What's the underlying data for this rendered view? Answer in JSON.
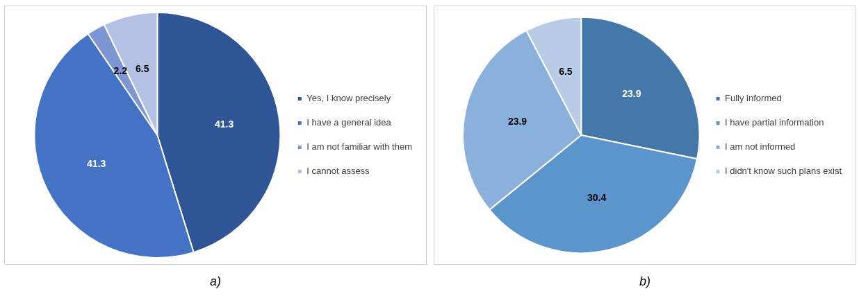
{
  "chart_data": [
    {
      "type": "pie",
      "categories": [
        "Yes, I know precisely",
        "I have a general idea",
        "I am not familiar with them",
        "I cannot assess"
      ],
      "values": [
        41.3,
        41.3,
        2.2,
        6.5
      ],
      "colors": [
        "#2f5597",
        "#4472c4",
        "#7f96d4",
        "#b4c0e4"
      ],
      "data_labels": true,
      "legend": "right",
      "annotations": [
        "a)"
      ]
    },
    {
      "type": "pie",
      "categories": [
        "Fully informed",
        "I have partial information",
        "I am not informed",
        "I didn't know such plans exist"
      ],
      "values": [
        23.9,
        30.4,
        23.9,
        6.5
      ],
      "colors": [
        "#4478a8",
        "#5b95cb",
        "#8ab0dc",
        "#b8cce8"
      ],
      "data_labels": true,
      "legend": "right",
      "annotations": [
        "b)"
      ]
    }
  ]
}
